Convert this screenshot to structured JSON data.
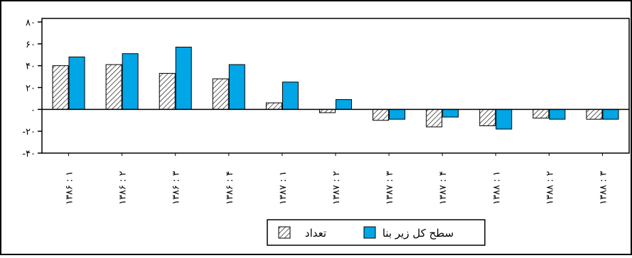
{
  "chart_data": {
    "type": "bar",
    "title": "",
    "xlabel": "",
    "ylabel": "",
    "ylim": [
      -40,
      80
    ],
    "yticks": [
      {
        "value": 80,
        "label": "۸۰"
      },
      {
        "value": 60,
        "label": "۶۰"
      },
      {
        "value": 40,
        "label": "۴۰"
      },
      {
        "value": 20,
        "label": "۲۰"
      },
      {
        "value": 0,
        "label": "۰"
      },
      {
        "value": -20,
        "label": "-۲۰"
      },
      {
        "value": -40,
        "label": "-۴۰"
      }
    ],
    "categories": [
      "۱۳۸۶ : ۱",
      "۱۳۸۶ : ۲",
      "۱۳۸۶ : ۳",
      "۱۳۸۶ : ۴",
      "۱۳۸۷ : ۱",
      "۱۳۸۷ : ۲",
      "۱۳۸۷ : ۳",
      "۱۳۸۷ : ۴",
      "۱۳۸۸ : ۱",
      "۱۳۸۸ : ۲",
      "۱۳۸۸ : ۳"
    ],
    "series": [
      {
        "name": "تعداد",
        "pattern": "hatched",
        "color": "#d9d9d9",
        "values": [
          40,
          41,
          33,
          28,
          6,
          -3,
          -10,
          -16,
          -15,
          -8,
          -9
        ]
      },
      {
        "name": "سطح کل زیر بنا",
        "pattern": "solid",
        "color": "#00a6e6",
        "values": [
          48,
          51,
          57,
          41,
          25,
          9,
          -9,
          -7,
          -18,
          -9,
          -9
        ]
      }
    ],
    "grid": false,
    "legend_position": "bottom-center"
  }
}
